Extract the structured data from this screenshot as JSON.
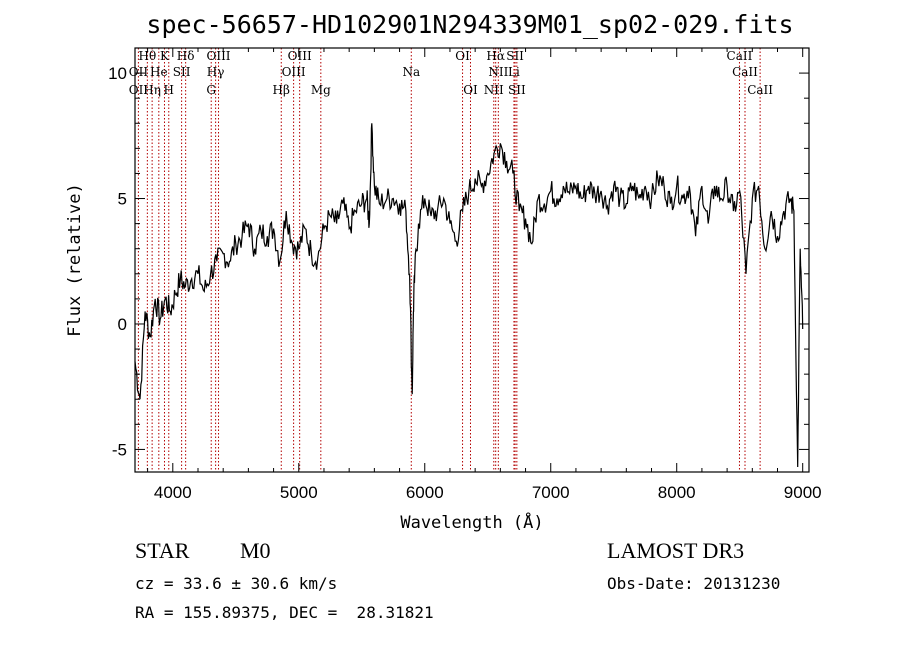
{
  "chart_data": {
    "type": "line",
    "title": "spec-56657-HD102901N294339M01_sp02-029.fits",
    "xlabel": "Wavelength (Å)",
    "ylabel": "Flux (relative)",
    "xlim": [
      3700,
      9050
    ],
    "ylim": [
      -5.9,
      11.0
    ],
    "xticks": [
      4000,
      5000,
      6000,
      7000,
      8000,
      9000
    ],
    "yticks": [
      -5,
      0,
      5,
      10
    ],
    "series": [
      {
        "name": "flux",
        "x": [
          3700,
          3740,
          3780,
          3820,
          3860,
          3900,
          3940,
          3980,
          4020,
          4060,
          4100,
          4150,
          4200,
          4250,
          4300,
          4350,
          4400,
          4450,
          4500,
          4550,
          4600,
          4650,
          4700,
          4750,
          4800,
          4850,
          4900,
          4950,
          5000,
          5050,
          5100,
          5150,
          5200,
          5250,
          5300,
          5350,
          5400,
          5450,
          5500,
          5540,
          5560,
          5580,
          5600,
          5640,
          5700,
          5750,
          5800,
          5850,
          5880,
          5900,
          5910,
          5920,
          5950,
          6000,
          6050,
          6100,
          6150,
          6200,
          6250,
          6300,
          6350,
          6400,
          6450,
          6500,
          6550,
          6600,
          6650,
          6700,
          6750,
          6800,
          6850,
          6900,
          6950,
          7000,
          7050,
          7100,
          7150,
          7200,
          7250,
          7300,
          7350,
          7400,
          7450,
          7500,
          7550,
          7600,
          7650,
          7700,
          7750,
          7800,
          7850,
          7900,
          7950,
          8000,
          8050,
          8100,
          8150,
          8200,
          8250,
          8300,
          8350,
          8400,
          8450,
          8500,
          8550,
          8600,
          8650,
          8700,
          8750,
          8800,
          8850,
          8900,
          8930,
          8960,
          8980,
          9000
        ],
        "y": [
          -1.5,
          -3.0,
          0.5,
          -0.5,
          1.0,
          0.2,
          1.0,
          0.5,
          1.2,
          1.8,
          1.5,
          1.8,
          2.0,
          1.3,
          2.0,
          2.5,
          2.8,
          2.5,
          3.2,
          3.5,
          4.0,
          3.0,
          3.7,
          3.5,
          3.8,
          2.5,
          4.5,
          3.2,
          3.0,
          3.8,
          2.8,
          2.6,
          3.8,
          4.3,
          4.0,
          4.8,
          3.8,
          4.5,
          4.8,
          5.0,
          4.0,
          8.0,
          5.5,
          4.8,
          5.0,
          5.0,
          4.8,
          4.5,
          2.0,
          -2.8,
          0.5,
          2.0,
          4.0,
          5.0,
          4.3,
          4.5,
          5.0,
          4.0,
          3.3,
          4.5,
          5.3,
          5.8,
          5.5,
          6.0,
          6.8,
          7.2,
          6.5,
          6.0,
          4.5,
          4.2,
          3.2,
          5.0,
          4.8,
          5.3,
          5.0,
          5.5,
          5.2,
          5.5,
          5.0,
          5.5,
          5.2,
          5.3,
          4.7,
          5.5,
          5.0,
          4.8,
          5.5,
          5.0,
          5.5,
          5.0,
          5.8,
          5.5,
          4.8,
          5.5,
          5.0,
          5.5,
          3.5,
          5.5,
          4.0,
          5.5,
          5.0,
          5.5,
          4.5,
          5.3,
          2.0,
          5.0,
          5.5,
          3.0,
          4.5,
          3.5,
          4.5,
          5.0,
          4.5,
          -5.7,
          3.0,
          -0.2
        ]
      }
    ],
    "lines": [
      {
        "label": "Hθ",
        "wl": 3798,
        "row": 0
      },
      {
        "label": "K",
        "wl": 3934,
        "row": 0
      },
      {
        "label": "Hδ",
        "wl": 4102,
        "row": 0
      },
      {
        "label": "OIII",
        "wl": 4363,
        "row": 0
      },
      {
        "label": "OIII",
        "wl": 5007,
        "row": 0
      },
      {
        "label": "OI",
        "wl": 6300,
        "row": 0
      },
      {
        "label": "Hα",
        "wl": 6563,
        "row": 0
      },
      {
        "label": "SII",
        "wl": 6717,
        "row": 0
      },
      {
        "label": "CaII",
        "wl": 8498,
        "row": 0
      },
      {
        "label": "OII",
        "wl": 3727,
        "row": 1
      },
      {
        "label": "He",
        "wl": 3889,
        "row": 1
      },
      {
        "label": "SII",
        "wl": 4070,
        "row": 1
      },
      {
        "label": "Hγ",
        "wl": 4340,
        "row": 1
      },
      {
        "label": "OIII",
        "wl": 4959,
        "row": 1
      },
      {
        "label": "NII",
        "wl": 6584,
        "row": 1
      },
      {
        "label": "Li",
        "wl": 6708,
        "row": 1
      },
      {
        "label": "CaII",
        "wl": 8542,
        "row": 1
      },
      {
        "label": "Na",
        "wl": 5893,
        "row": 1
      },
      {
        "label": "OII",
        "wl": 3727,
        "row": 2
      },
      {
        "label": "Hη",
        "wl": 3836,
        "row": 2
      },
      {
        "label": "H",
        "wl": 3968,
        "row": 2
      },
      {
        "label": "G",
        "wl": 4305,
        "row": 2
      },
      {
        "label": "Hβ",
        "wl": 4861,
        "row": 2
      },
      {
        "label": "Mg",
        "wl": 5175,
        "row": 2
      },
      {
        "label": "OI",
        "wl": 6363,
        "row": 2
      },
      {
        "label": "NII",
        "wl": 6548,
        "row": 2
      },
      {
        "label": "SII",
        "wl": 6731,
        "row": 2
      },
      {
        "label": "CaII",
        "wl": 8662,
        "row": 2
      }
    ]
  },
  "info": {
    "class": "STAR",
    "subclass": "M0",
    "survey": "LAMOST DR3",
    "cz": "cz = 33.6 ± 30.6 km/s",
    "obsdate": "Obs-Date: 20131230",
    "radec": "RA = 155.89375, DEC =  28.31821"
  }
}
